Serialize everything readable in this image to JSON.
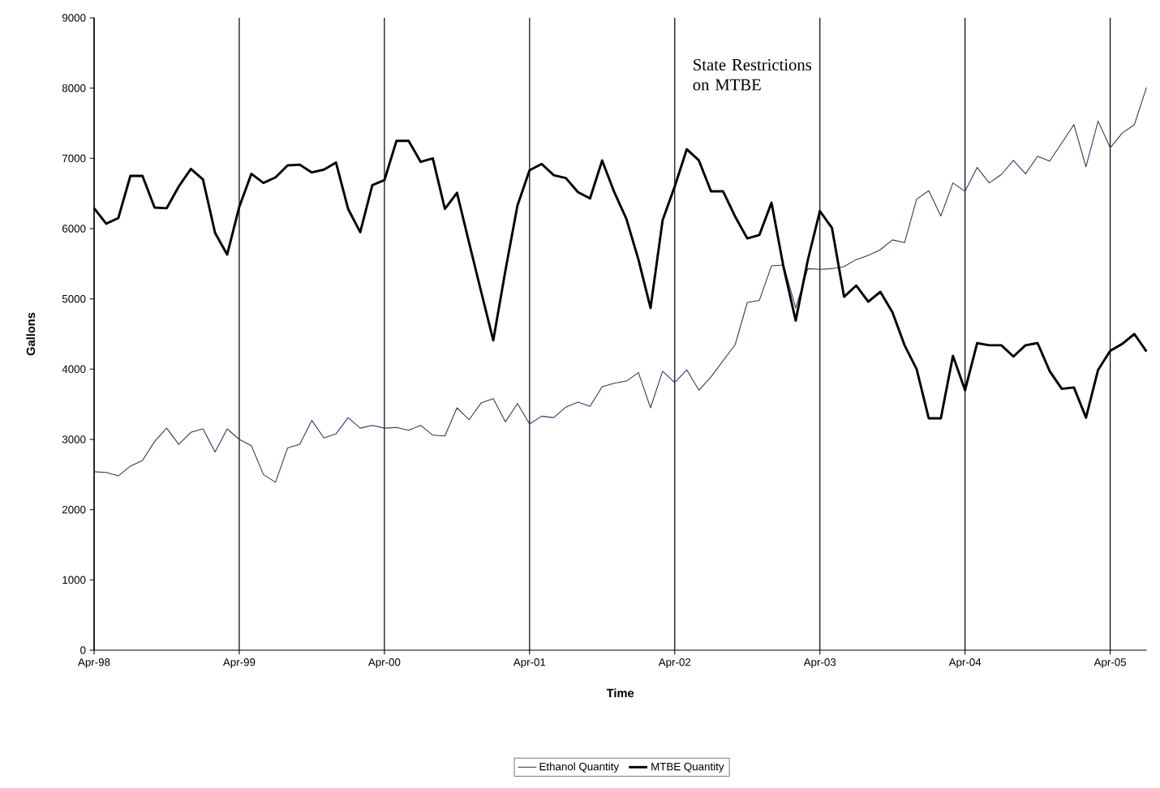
{
  "chart_data": {
    "type": "line",
    "xlabel": "Time",
    "ylabel": "Gallons",
    "annotations": [
      "State Restrictions on MTBE"
    ],
    "x": [
      "1998-04",
      "1998-05",
      "1998-06",
      "1998-07",
      "1998-08",
      "1998-09",
      "1998-10",
      "1998-11",
      "1998-12",
      "1999-01",
      "1999-02",
      "1999-03",
      "1999-04",
      "1999-05",
      "1999-06",
      "1999-07",
      "1999-08",
      "1999-09",
      "1999-10",
      "1999-11",
      "1999-12",
      "2000-01",
      "2000-02",
      "2000-03",
      "2000-04",
      "2000-05",
      "2000-06",
      "2000-07",
      "2000-08",
      "2000-09",
      "2000-10",
      "2000-11",
      "2000-12",
      "2001-01",
      "2001-02",
      "2001-03",
      "2001-04",
      "2001-05",
      "2001-06",
      "2001-07",
      "2001-08",
      "2001-09",
      "2001-10",
      "2001-11",
      "2001-12",
      "2002-01",
      "2002-02",
      "2002-03",
      "2002-04",
      "2002-05",
      "2002-06",
      "2002-07",
      "2002-08",
      "2002-09",
      "2002-10",
      "2002-11",
      "2002-12",
      "2003-01",
      "2003-02",
      "2003-03",
      "2003-04",
      "2003-05",
      "2003-06",
      "2003-07",
      "2003-08",
      "2003-09",
      "2003-10",
      "2003-11",
      "2003-12",
      "2004-01",
      "2004-02",
      "2004-03",
      "2004-04",
      "2004-05",
      "2004-06",
      "2004-07",
      "2004-08",
      "2004-09",
      "2004-10",
      "2004-11",
      "2004-12",
      "2005-01",
      "2005-02",
      "2005-03",
      "2005-04",
      "2005-05",
      "2005-06",
      "2005-07"
    ],
    "series": [
      {
        "name": "Ethanol Quantity",
        "color": "#333366",
        "values": [
          2540,
          2530,
          2480,
          2620,
          2700,
          2970,
          3160,
          2930,
          3100,
          3150,
          2820,
          3150,
          3000,
          2910,
          2500,
          2390,
          2880,
          2930,
          3270,
          3020,
          3080,
          3310,
          3160,
          3200,
          3160,
          3170,
          3130,
          3200,
          3060,
          3050,
          3450,
          3280,
          3520,
          3580,
          3250,
          3510,
          3220,
          3330,
          3310,
          3460,
          3530,
          3470,
          3750,
          3800,
          3830,
          3950,
          3450,
          3970,
          3810,
          3990,
          3700,
          3890,
          4120,
          4350,
          4950,
          4980,
          5470,
          5480,
          4870,
          5430,
          5420,
          5430,
          5460,
          5560,
          5620,
          5700,
          5840,
          5800,
          6420,
          6540,
          6180,
          6650,
          6530,
          6870,
          6650,
          6770,
          6970,
          6780,
          7030,
          6960,
          7220,
          7480,
          6880,
          7530,
          7150,
          7360,
          7480,
          8010
        ]
      },
      {
        "name": "MTBE Quantity",
        "color": "#000000",
        "values": [
          6290,
          6070,
          6150,
          6750,
          6750,
          6300,
          6290,
          6600,
          6850,
          6700,
          5940,
          5630,
          6310,
          6780,
          6650,
          6730,
          6900,
          6910,
          6800,
          6840,
          6940,
          6280,
          5950,
          6620,
          6690,
          7250,
          7250,
          6950,
          7000,
          6280,
          6510,
          5800,
          5100,
          4410,
          5400,
          6330,
          6830,
          6920,
          6760,
          6720,
          6520,
          6430,
          6970,
          6520,
          6140,
          5560,
          4870,
          6120,
          6600,
          7130,
          6970,
          6530,
          6530,
          6170,
          5860,
          5910,
          6370,
          5450,
          4690,
          5550,
          6250,
          6010,
          5030,
          5190,
          4960,
          5100,
          4810,
          4340,
          4000,
          3300,
          3300,
          4190,
          3700,
          4370,
          4340,
          4340,
          4180,
          4340,
          4370,
          3970,
          3720,
          3740,
          3310,
          3990,
          4260,
          4360,
          4500,
          4250
        ]
      }
    ],
    "xlim": [
      "1998-04",
      "2005-07"
    ],
    "xticks": [
      {
        "value": "1998-04",
        "label": "Apr-98"
      },
      {
        "value": "1999-04",
        "label": "Apr-99"
      },
      {
        "value": "2000-04",
        "label": "Apr-00"
      },
      {
        "value": "2001-04",
        "label": "Apr-01"
      },
      {
        "value": "2002-04",
        "label": "Apr-02"
      },
      {
        "value": "2003-04",
        "label": "Apr-03"
      },
      {
        "value": "2004-04",
        "label": "Apr-04"
      },
      {
        "value": "2005-04",
        "label": "Apr-05"
      }
    ],
    "ylim": [
      0,
      9000
    ],
    "yticks": [
      0,
      1000,
      2000,
      3000,
      4000,
      5000,
      6000,
      7000,
      8000,
      9000
    ],
    "grid": "x",
    "legend": "bottom"
  }
}
